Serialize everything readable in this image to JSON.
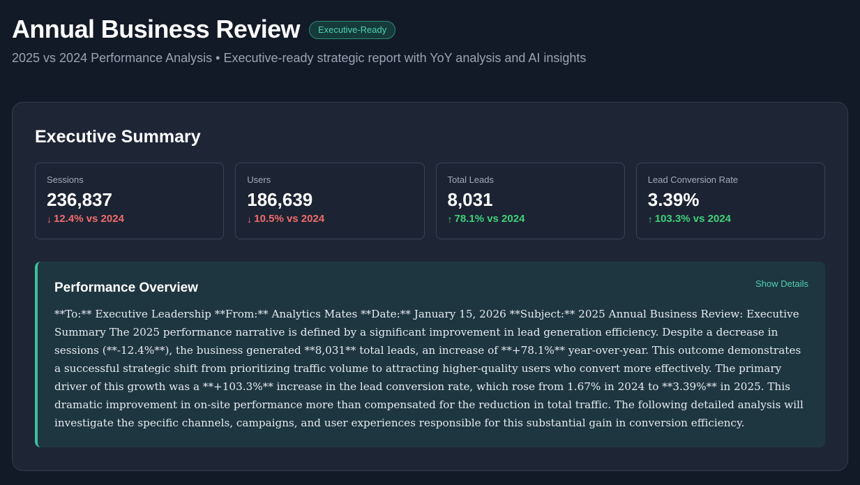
{
  "header": {
    "title": "Annual Business Review",
    "badge": "Executive-Ready",
    "subtitle": "2025 vs 2024 Performance Analysis • Executive-ready strategic report with YoY analysis and AI insights"
  },
  "summary": {
    "title": "Executive Summary",
    "metrics": [
      {
        "label": "Sessions",
        "value": "236,837",
        "arrow": "↓",
        "change": "12.4% vs 2024",
        "trend": "down"
      },
      {
        "label": "Users",
        "value": "186,639",
        "arrow": "↓",
        "change": "10.5% vs 2024",
        "trend": "down"
      },
      {
        "label": "Total Leads",
        "value": "8,031",
        "arrow": "↑",
        "change": "78.1% vs 2024",
        "trend": "up"
      },
      {
        "label": "Lead Conversion Rate",
        "value": "3.39%",
        "arrow": "↑",
        "change": "103.3% vs 2024",
        "trend": "up"
      }
    ]
  },
  "overview": {
    "title": "Performance Overview",
    "show_details": "Show Details",
    "text": "**To:** Executive Leadership **From:** Analytics Mates **Date:** January 15, 2026 **Subject:** 2025 Annual Business Review: Executive Summary The 2025 performance narrative is defined by a significant improvement in lead generation efficiency. Despite a decrease in sessions (**-12.4%**), the business generated **8,031** total leads, an increase of **+78.1%** year-over-year. This outcome demonstrates a successful strategic shift from prioritizing traffic volume to attracting higher-quality users who convert more effectively. The primary driver of this growth was a **+103.3%** increase in the lead conversion rate, which rose from 1.67% in 2024 to **3.39%** in 2025. This dramatic improvement in on-site performance more than compensated for the reduction in total traffic. The following detailed analysis will investigate the specific channels, campaigns, and user experiences responsible for this substantial gain in conversion efficiency."
  },
  "colors": {
    "background": "#131a27",
    "card": "#1e2636",
    "accent": "#4fd1b0",
    "positive": "#3ed17a",
    "negative": "#f16b6b"
  }
}
